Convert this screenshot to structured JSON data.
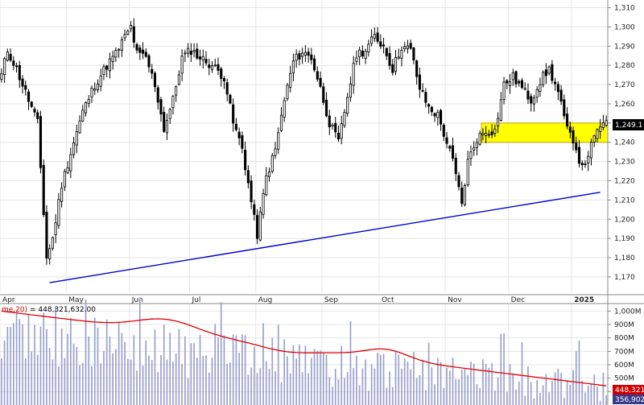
{
  "chart_data": {
    "type": "candlestick",
    "price_axis": {
      "ylim": [
        1162,
        1314
      ],
      "ticks": [
        1170,
        1180,
        1190,
        1200,
        1210,
        1220,
        1230,
        1240,
        1250,
        1260,
        1270,
        1280,
        1290,
        1300,
        1310
      ],
      "tick_labels": [
        "1,170",
        "1,180",
        "1,190",
        "1,200",
        "1,210",
        "1,220",
        "1,230",
        "1,240",
        "1,250",
        "1,260",
        "1,270",
        "1,280",
        "1,290",
        "1,300",
        "1,310"
      ],
      "last_price_label": "1,249.1",
      "last_price": 1249.1
    },
    "months": [
      {
        "label": "Apr",
        "index": 0
      },
      {
        "label": "May",
        "index": 22
      },
      {
        "label": "Jun",
        "index": 43
      },
      {
        "label": "Jul",
        "index": 63
      },
      {
        "label": "Aug",
        "index": 85
      },
      {
        "label": "Sep",
        "index": 107
      },
      {
        "label": "Oct",
        "index": 126
      },
      {
        "label": "Nov",
        "index": 148
      },
      {
        "label": "Dec",
        "index": 169
      },
      {
        "label": "2025",
        "index": 190
      }
    ],
    "trendline": {
      "from": {
        "index": 16,
        "price": 1167
      },
      "to": {
        "index": 199,
        "price": 1214
      },
      "color": "#0000cc"
    },
    "resistance_zone": {
      "from_index": 160,
      "to_index": 201,
      "low": 1240,
      "high": 1250,
      "color": "#ffff00"
    },
    "volume": {
      "legend": "me,20) = 448,321,632.00",
      "ylim": [
        300000000,
        1050000000
      ],
      "ticks": [
        400000000,
        500000000,
        600000000,
        700000000,
        800000000,
        900000000,
        1000000000
      ],
      "tick_labels": [
        "400M",
        "500M",
        "600M",
        "700M",
        "800M",
        "900M",
        "1,000M"
      ],
      "ma_label": "448,321",
      "last_label": "356,902"
    },
    "colors": {
      "up": "#ffffff",
      "down": "#000000",
      "volume_bar": "#9aa0cc",
      "ma": "#e00000",
      "grid": "#e4e4e4"
    }
  }
}
